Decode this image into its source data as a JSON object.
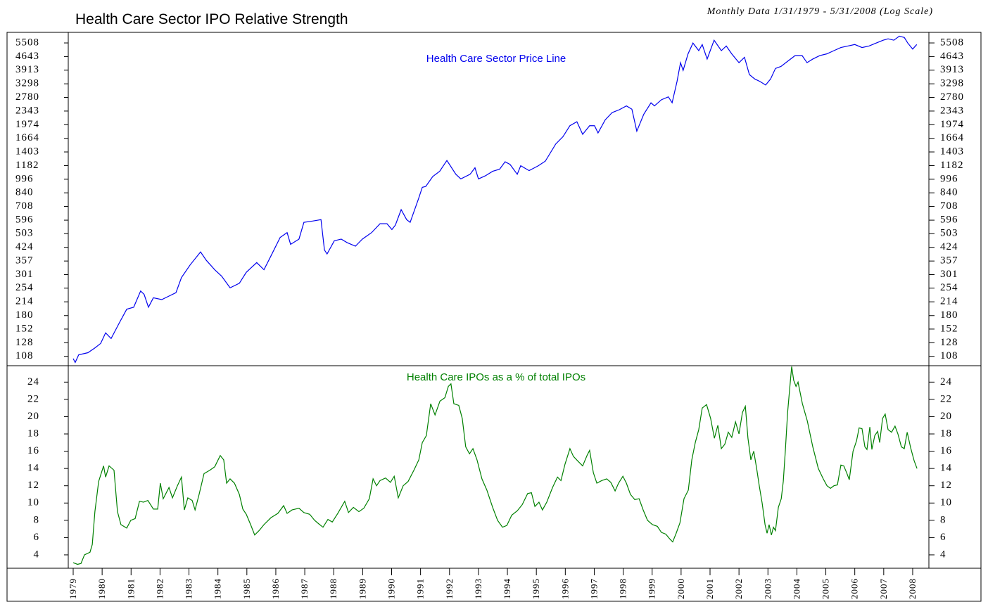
{
  "title": "Health Care Sector IPO Relative Strength",
  "subtitle": "Monthly Data 1/31/1979 - 5/31/2008 (Log Scale)",
  "chart_data": [
    {
      "type": "line",
      "label": "Health Care Sector Price Line",
      "log_scale": true,
      "color": "#0000ee",
      "xlim": [
        1978.83,
        2008.56
      ],
      "ylim": [
        96,
        6290
      ],
      "yticks": [
        108,
        128,
        152,
        180,
        214,
        254,
        301,
        357,
        424,
        503,
        596,
        708,
        840,
        996,
        1182,
        1403,
        1664,
        1974,
        2343,
        2780,
        3298,
        3913,
        4643,
        5508
      ],
      "x": [
        1979.0,
        1979.07,
        1979.19,
        1979.51,
        1979.75,
        1979.95,
        1980.12,
        1980.31,
        1980.6,
        1980.85,
        1981.09,
        1981.33,
        1981.45,
        1981.6,
        1981.77,
        1982.06,
        1982.31,
        1982.55,
        1982.74,
        1983.04,
        1983.4,
        1983.6,
        1983.89,
        1984.13,
        1984.42,
        1984.74,
        1984.98,
        1985.34,
        1985.59,
        1985.83,
        1986.15,
        1986.39,
        1986.51,
        1986.8,
        1986.97,
        1987.29,
        1987.56,
        1987.68,
        1987.77,
        1988.02,
        1988.26,
        1988.46,
        1988.75,
        1988.99,
        1989.31,
        1989.6,
        1989.84,
        1990.01,
        1990.13,
        1990.33,
        1990.52,
        1990.64,
        1990.93,
        1991.06,
        1991.18,
        1991.42,
        1991.66,
        1991.91,
        1992.22,
        1992.39,
        1992.71,
        1992.88,
        1993.0,
        1993.24,
        1993.49,
        1993.73,
        1993.92,
        1994.09,
        1994.34,
        1994.46,
        1994.75,
        1995.07,
        1995.31,
        1995.67,
        1995.92,
        1996.16,
        1996.4,
        1996.6,
        1996.84,
        1997.01,
        1997.13,
        1997.38,
        1997.62,
        1997.86,
        1998.11,
        1998.3,
        1998.47,
        1998.71,
        1998.96,
        1999.08,
        1999.32,
        1999.56,
        1999.69,
        1999.86,
        1999.98,
        2000.07,
        2000.24,
        2000.41,
        2000.61,
        2000.73,
        2000.9,
        2001.14,
        2001.39,
        2001.56,
        2001.75,
        2002.0,
        2002.19,
        2002.36,
        2002.55,
        2002.72,
        2002.92,
        2003.09,
        2003.26,
        2003.45,
        2003.7,
        2003.94,
        2004.18,
        2004.35,
        2004.55,
        2004.79,
        2005.03,
        2005.28,
        2005.52,
        2005.76,
        2006.0,
        2006.25,
        2006.49,
        2006.74,
        2006.98,
        2007.15,
        2007.35,
        2007.54,
        2007.71,
        2007.83,
        2008.0,
        2008.14
      ],
      "values": [
        105,
        100,
        110,
        113,
        120,
        127,
        145,
        135,
        165,
        195,
        200,
        245,
        235,
        200,
        225,
        220,
        230,
        240,
        290,
        340,
        400,
        360,
        320,
        295,
        255,
        270,
        310,
        350,
        320,
        380,
        480,
        510,
        440,
        470,
        580,
        590,
        600,
        410,
        390,
        460,
        470,
        450,
        430,
        470,
        510,
        570,
        570,
        530,
        560,
        680,
        600,
        580,
        780,
        900,
        910,
        1030,
        1100,
        1260,
        1060,
        1000,
        1060,
        1150,
        1000,
        1040,
        1100,
        1130,
        1240,
        1200,
        1060,
        1180,
        1110,
        1180,
        1250,
        1550,
        1700,
        1950,
        2050,
        1750,
        1950,
        1950,
        1780,
        2100,
        2300,
        2380,
        2500,
        2400,
        1820,
        2250,
        2600,
        2500,
        2700,
        2800,
        2600,
        3400,
        4300,
        3900,
        4800,
        5500,
        5000,
        5400,
        4500,
        5700,
        5000,
        5300,
        4800,
        4300,
        4600,
        3700,
        3500,
        3400,
        3250,
        3500,
        4000,
        4100,
        4400,
        4700,
        4700,
        4300,
        4500,
        4700,
        4800,
        5000,
        5200,
        5300,
        5400,
        5200,
        5300,
        5500,
        5700,
        5800,
        5700,
        6000,
        5900,
        5500,
        5100,
        5400
      ]
    },
    {
      "type": "line",
      "label": "Health Care IPOs as a % of total IPOs",
      "color": "#008000",
      "xlim": [
        1978.83,
        2008.56
      ],
      "ylim": [
        2.45,
        25.9
      ],
      "yticks": [
        4,
        6,
        8,
        10,
        12,
        14,
        16,
        18,
        20,
        22,
        24
      ],
      "xticks": [
        1979,
        1980,
        1981,
        1982,
        1983,
        1984,
        1985,
        1986,
        1987,
        1988,
        1989,
        1990,
        1991,
        1992,
        1993,
        1994,
        1995,
        1996,
        1997,
        1998,
        1999,
        2000,
        2001,
        2002,
        2003,
        2004,
        2005,
        2006,
        2007,
        2008
      ],
      "x": [
        1979.0,
        1979.15,
        1979.27,
        1979.39,
        1979.58,
        1979.66,
        1979.75,
        1979.88,
        1980.05,
        1980.12,
        1980.24,
        1980.41,
        1980.53,
        1980.65,
        1980.85,
        1980.99,
        1981.14,
        1981.29,
        1981.43,
        1981.58,
        1981.77,
        1981.92,
        1982.01,
        1982.11,
        1982.31,
        1982.43,
        1982.6,
        1982.74,
        1982.84,
        1982.96,
        1983.11,
        1983.21,
        1983.35,
        1983.52,
        1983.72,
        1983.89,
        1984.08,
        1984.2,
        1984.3,
        1984.42,
        1984.57,
        1984.74,
        1984.86,
        1984.98,
        1985.13,
        1985.27,
        1985.42,
        1985.59,
        1985.83,
        1986.07,
        1986.27,
        1986.39,
        1986.56,
        1986.8,
        1986.97,
        1987.17,
        1987.34,
        1987.48,
        1987.63,
        1987.8,
        1987.95,
        1988.14,
        1988.38,
        1988.51,
        1988.68,
        1988.87,
        1989.04,
        1989.23,
        1989.36,
        1989.48,
        1989.6,
        1989.79,
        1989.96,
        1990.09,
        1990.23,
        1990.4,
        1990.57,
        1990.77,
        1990.94,
        1991.06,
        1991.2,
        1991.35,
        1991.5,
        1991.67,
        1991.84,
        1991.96,
        1992.05,
        1992.15,
        1992.32,
        1992.44,
        1992.56,
        1992.69,
        1992.81,
        1992.95,
        1993.12,
        1993.29,
        1993.49,
        1993.66,
        1993.83,
        1993.98,
        1994.15,
        1994.34,
        1994.51,
        1994.7,
        1994.83,
        1994.95,
        1995.09,
        1995.21,
        1995.36,
        1995.56,
        1995.73,
        1995.85,
        1995.99,
        1996.16,
        1996.28,
        1996.45,
        1996.6,
        1996.75,
        1996.84,
        1996.97,
        1997.09,
        1997.26,
        1997.43,
        1997.57,
        1997.72,
        1997.84,
        1997.99,
        1998.11,
        1998.25,
        1998.4,
        1998.55,
        1998.69,
        1998.84,
        1999.01,
        1999.18,
        1999.32,
        1999.47,
        1999.62,
        1999.71,
        1999.83,
        1999.96,
        2000.1,
        2000.25,
        2000.37,
        2000.49,
        2000.61,
        2000.73,
        2000.88,
        2001.02,
        2001.15,
        2001.27,
        2001.39,
        2001.51,
        2001.63,
        2001.75,
        2001.88,
        2002.0,
        2002.12,
        2002.22,
        2002.31,
        2002.41,
        2002.51,
        2002.61,
        2002.7,
        2002.8,
        2002.9,
        2002.97,
        2003.04,
        2003.12,
        2003.19,
        2003.26,
        2003.36,
        2003.46,
        2003.53,
        2003.6,
        2003.68,
        2003.75,
        2003.82,
        2003.89,
        2003.97,
        2004.04,
        2004.19,
        2004.36,
        2004.55,
        2004.74,
        2004.91,
        2005.04,
        2005.16,
        2005.28,
        2005.4,
        2005.52,
        2005.62,
        2005.72,
        2005.81,
        2005.94,
        2006.06,
        2006.15,
        2006.25,
        2006.35,
        2006.42,
        2006.52,
        2006.59,
        2006.69,
        2006.79,
        2006.86,
        2006.96,
        2007.05,
        2007.15,
        2007.27,
        2007.39,
        2007.49,
        2007.61,
        2007.71,
        2007.81,
        2007.93,
        2008.05,
        2008.15
      ],
      "values": [
        3.1,
        2.9,
        3.0,
        4.0,
        4.3,
        5.2,
        9,
        12.5,
        14.3,
        13,
        14.3,
        13.8,
        9,
        7.5,
        7.1,
        8,
        8.2,
        10.2,
        10.1,
        10.3,
        9.3,
        9.3,
        12.3,
        10.5,
        11.8,
        10.6,
        12,
        13,
        9.2,
        10.6,
        10.3,
        9.2,
        11,
        13.4,
        13.8,
        14.2,
        15.5,
        15,
        12.3,
        12.8,
        12.3,
        11,
        9.3,
        8.7,
        7.5,
        6.3,
        6.8,
        7.5,
        8.3,
        8.8,
        9.7,
        8.8,
        9.2,
        9.4,
        8.9,
        8.7,
        8.0,
        7.6,
        7.2,
        8.1,
        7.8,
        8.8,
        10.2,
        8.9,
        9.5,
        9.0,
        9.4,
        10.5,
        12.8,
        12,
        12.6,
        12.9,
        12.4,
        13.1,
        10.6,
        12,
        12.5,
        13.8,
        15,
        17,
        17.8,
        21.5,
        20.2,
        21.8,
        22.2,
        23.5,
        23.8,
        21.5,
        21.3,
        19.8,
        16.5,
        15.7,
        16.3,
        15,
        12.8,
        11.5,
        9.5,
        8.0,
        7.2,
        7.4,
        8.6,
        9.1,
        9.8,
        11.1,
        11.2,
        9.6,
        10.1,
        9.2,
        10.1,
        11.8,
        13,
        12.6,
        14.5,
        16.3,
        15.4,
        14.8,
        14.3,
        15.5,
        16.1,
        13.5,
        12.3,
        12.6,
        12.8,
        12.4,
        11.4,
        12.3,
        13.1,
        12.3,
        11,
        10.4,
        10.5,
        9.2,
        8,
        7.5,
        7.3,
        6.6,
        6.4,
        5.8,
        5.5,
        6.5,
        7.7,
        10.5,
        11.5,
        15,
        17,
        18.5,
        21,
        21.4,
        19.8,
        17.5,
        19,
        16.3,
        16.8,
        18.2,
        17.6,
        19.4,
        18,
        20.5,
        21.2,
        17.5,
        15,
        16,
        14,
        12,
        10,
        7.5,
        6.5,
        7.5,
        6.3,
        7.2,
        6.8,
        9.5,
        10.5,
        12.5,
        16,
        20.5,
        23.2,
        25.8,
        24.2,
        23.5,
        24,
        21.5,
        19.5,
        16.5,
        14,
        12.8,
        12,
        11.7,
        12,
        12.1,
        14.4,
        14.3,
        13.5,
        12.7,
        16,
        17.2,
        18.7,
        18.6,
        16.5,
        16.2,
        18.8,
        16.2,
        17.8,
        18.3,
        17,
        19.8,
        20.3,
        18.5,
        18.2,
        18.9,
        18,
        16.5,
        16.3,
        18.2,
        16.4,
        14.9,
        14.0
      ]
    }
  ]
}
